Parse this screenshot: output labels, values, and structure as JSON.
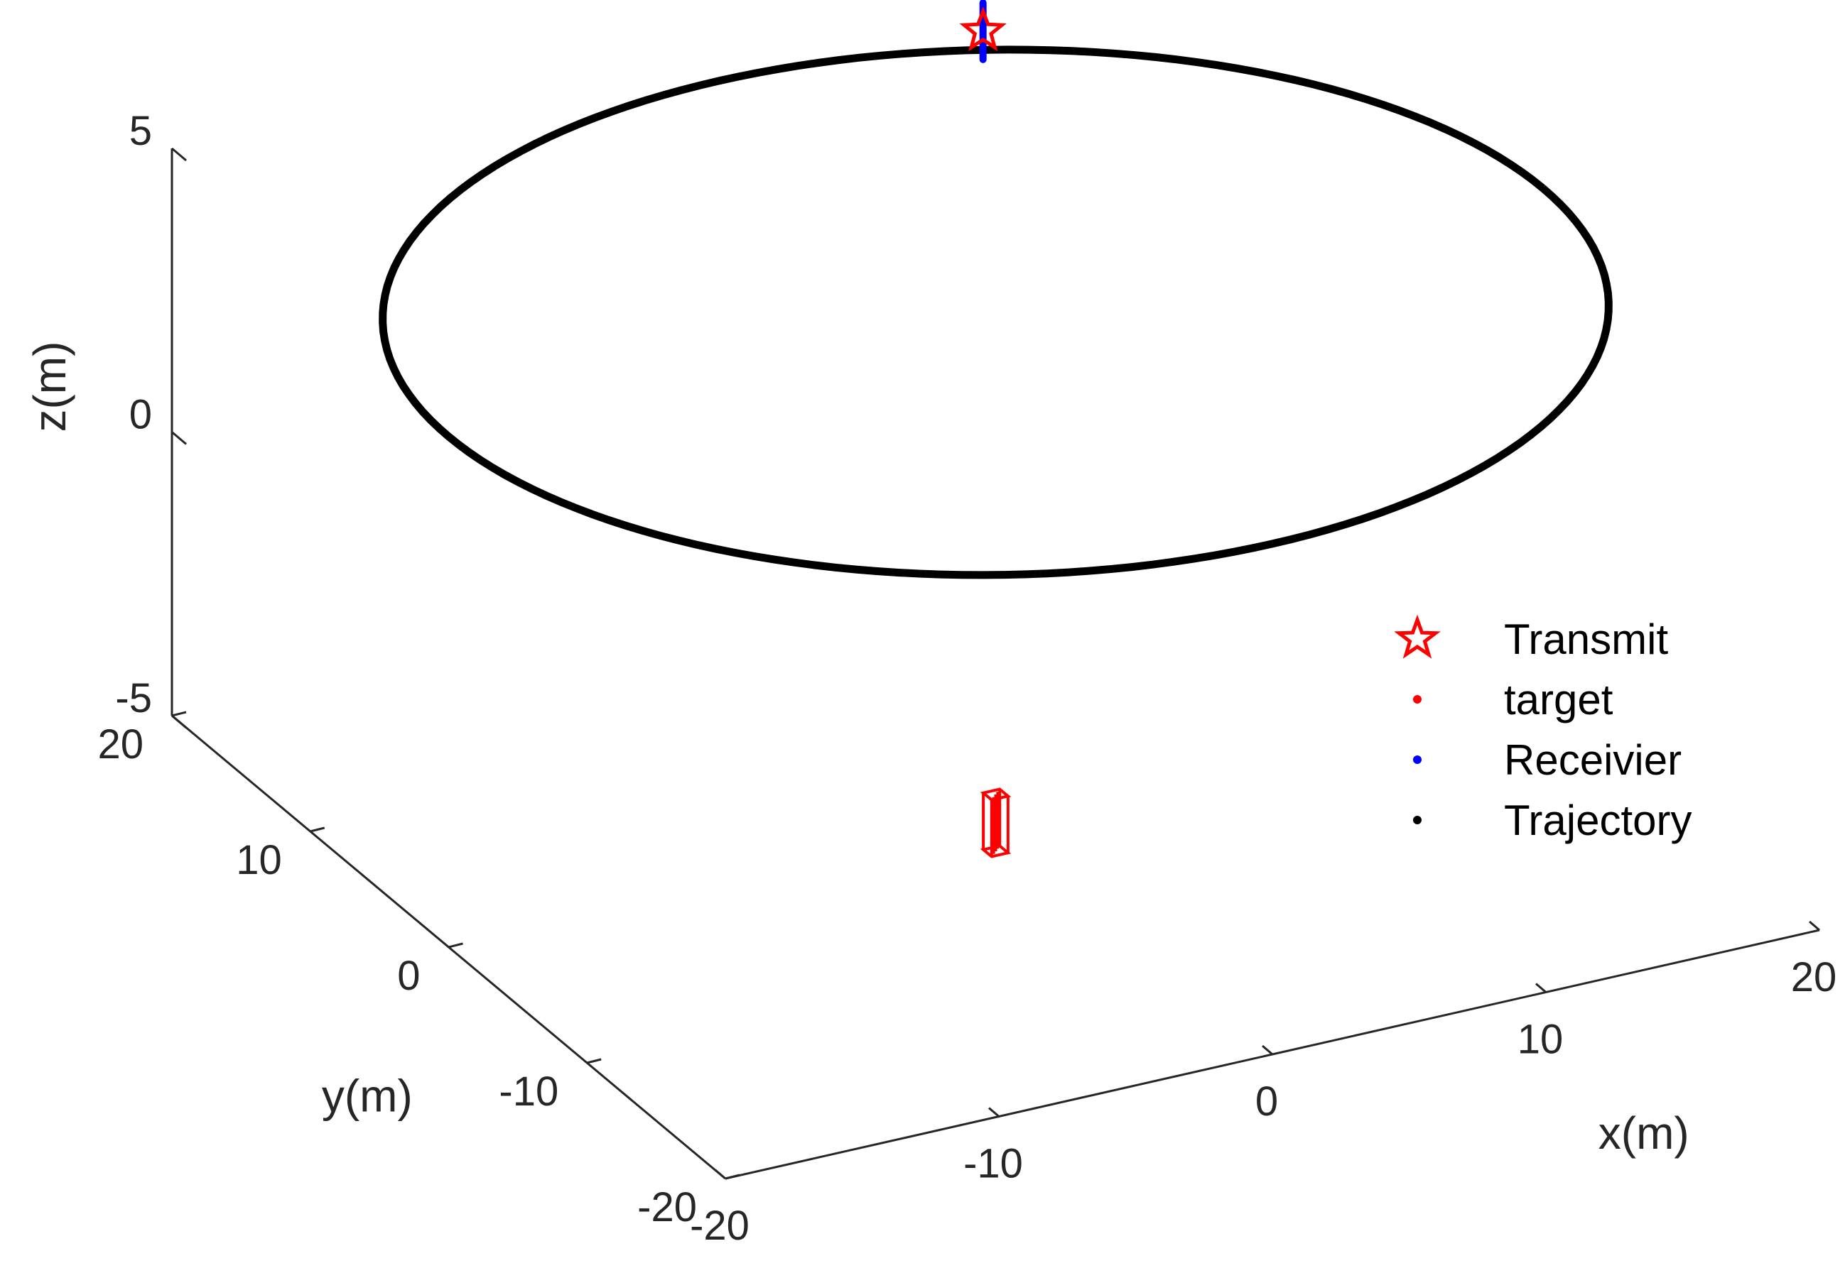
{
  "chart_data": {
    "type": "scatter3d",
    "title": "",
    "axes": {
      "x": {
        "label": "x(m)",
        "range": [
          -20,
          20
        ],
        "ticks": [
          -20,
          -10,
          0,
          10,
          20
        ],
        "tick_labels": [
          "-20",
          "-10",
          "0",
          "10",
          "20"
        ]
      },
      "y": {
        "label": "y(m)",
        "range": [
          -20,
          20
        ],
        "ticks": [
          -20,
          -10,
          0,
          10,
          20
        ],
        "tick_labels": [
          "-20",
          "-10",
          "0",
          "10",
          "20"
        ]
      },
      "z": {
        "label": "z(m)",
        "range": [
          -5,
          5
        ],
        "ticks": [
          -5,
          0,
          5
        ],
        "tick_labels": [
          "-5",
          "0",
          "5"
        ]
      }
    },
    "grid": false,
    "legend_position": "right",
    "series": [
      {
        "name": "Transmit",
        "kind": "point",
        "marker": "star",
        "color": "#ff0000",
        "points": [
          [
            9.3,
            19.3,
            4.0
          ]
        ]
      },
      {
        "name": "target",
        "kind": "box",
        "marker": "dot",
        "color": "#ff0000",
        "x_range": [
          -0.3,
          0.3
        ],
        "y_range": [
          -0.3,
          0.3
        ],
        "z_range": [
          -5.5,
          -4.5
        ]
      },
      {
        "name": "Receivier",
        "kind": "segment",
        "marker": "dot",
        "color": "#0000ff",
        "points": [
          [
            9.3,
            19.3,
            3.5
          ],
          [
            9.3,
            19.3,
            4.5
          ]
        ]
      },
      {
        "name": "Trajectory",
        "kind": "circle",
        "marker": "dot",
        "color": "#000000",
        "center": [
          0,
          0,
          4
        ],
        "radius": 20
      }
    ]
  }
}
